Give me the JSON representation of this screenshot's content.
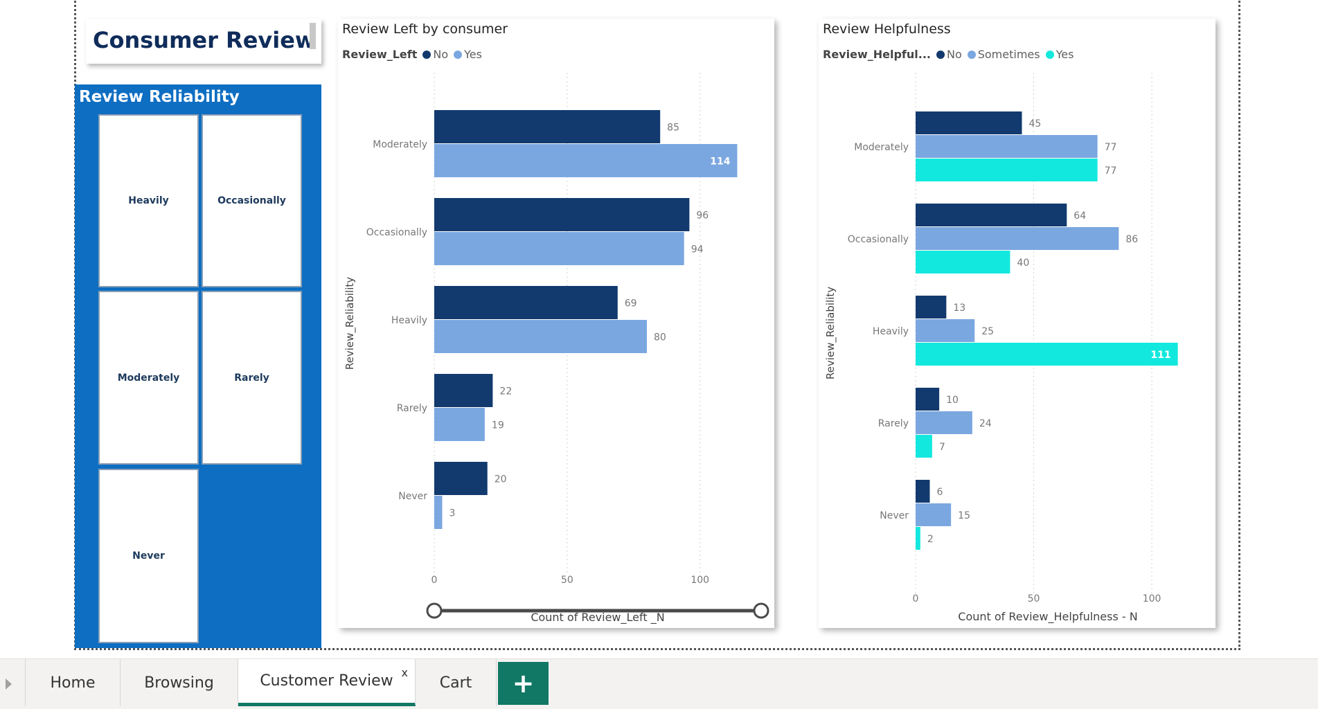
{
  "page": {
    "title": "Consumer Review"
  },
  "slicer": {
    "header": "Review Reliability",
    "items": [
      "Heavily",
      "Occasionally",
      "Moderately",
      "Rarely",
      "Never"
    ]
  },
  "chart1_view": {
    "title": "Review Left by consumer",
    "legend_title": "Review_Left",
    "legend": [
      {
        "name": "No",
        "color": "#123a6e"
      },
      {
        "name": "Yes",
        "color": "#7ba7e0"
      }
    ]
  },
  "chart2_view": {
    "title": "Review Helpfulness",
    "legend_title": "Review_Helpful...",
    "legend": [
      {
        "name": "No",
        "color": "#123a6e"
      },
      {
        "name": "Sometimes",
        "color": "#7ba7e0"
      },
      {
        "name": "Yes",
        "color": "#13e8de"
      }
    ]
  },
  "chart_data": [
    {
      "type": "bar",
      "orientation": "horizontal",
      "title": "Review Left by consumer",
      "xlabel": "Count of Review_Left _N",
      "ylabel": "Review_Reliability",
      "categories": [
        "Moderately",
        "Occasionally",
        "Heavily",
        "Rarely",
        "Never"
      ],
      "series": [
        {
          "name": "No",
          "values": [
            85,
            96,
            69,
            22,
            20
          ],
          "color": "#123a6e"
        },
        {
          "name": "Yes",
          "values": [
            114,
            94,
            80,
            19,
            3
          ],
          "color": "#7ba7e0"
        }
      ],
      "xlim": [
        0,
        123
      ],
      "xticks": [
        0,
        50,
        100
      ],
      "legend_title": "Review_Left",
      "legend_position": "top-left",
      "grid": "vertical dotted"
    },
    {
      "type": "bar",
      "orientation": "horizontal",
      "title": "Review Helpfulness",
      "xlabel": "Count of Review_Helpfulness - N",
      "ylabel": "Review_Reliability",
      "categories": [
        "Moderately",
        "Occasionally",
        "Heavily",
        "Rarely",
        "Never"
      ],
      "series": [
        {
          "name": "No",
          "values": [
            45,
            64,
            13,
            10,
            6
          ],
          "color": "#123a6e"
        },
        {
          "name": "Sometimes",
          "values": [
            77,
            86,
            25,
            24,
            15
          ],
          "color": "#7ba7e0"
        },
        {
          "name": "Yes",
          "values": [
            77,
            40,
            111,
            7,
            2
          ],
          "color": "#13e8de"
        }
      ],
      "xlim": [
        0,
        112
      ],
      "xticks": [
        0,
        50,
        100
      ],
      "legend_title": "Review_Helpful...",
      "legend_position": "top-left",
      "grid": "vertical dotted"
    }
  ],
  "tabs": [
    {
      "label": "Home",
      "active": false
    },
    {
      "label": "Browsing",
      "active": false
    },
    {
      "label": "Customer Review",
      "active": true,
      "close": "x"
    },
    {
      "label": "Cart",
      "active": false
    }
  ],
  "add_tab_label": "+"
}
